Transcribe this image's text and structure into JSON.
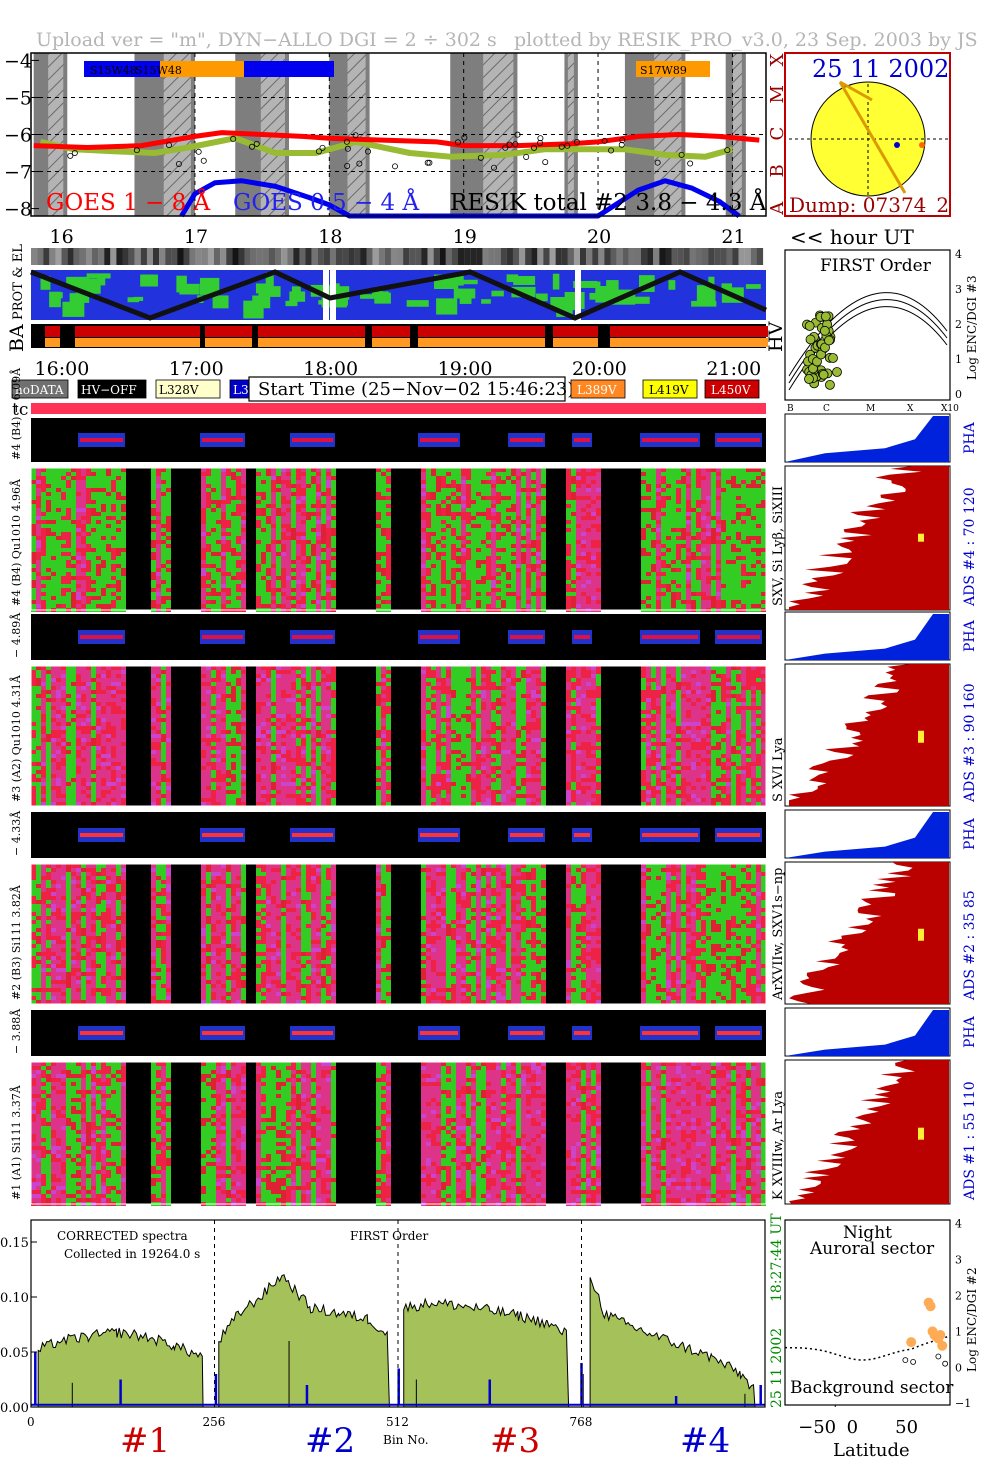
{
  "header": {
    "upload": "Upload ver = \"m\", DYN−ALLO DGI =   2 ÷ 302 s",
    "plotted": "plotted by RESIK_PRO_v3.0, 23 Sep. 2003 by JS"
  },
  "goes_panel": {
    "y_ticks": [
      "−4",
      "−5",
      "−6",
      "−7",
      "−8"
    ],
    "flare_classes": [
      "X",
      "M",
      "C",
      "B",
      "A"
    ],
    "x_ticks": [
      "16",
      "17",
      "18",
      "19",
      "20",
      "21"
    ],
    "labels": {
      "goes18": "GOES 1 − 8 Å",
      "goes054": "GOES 0.5 − 4 Å",
      "resik": "RESIK total #2  3.8 − 4.3 Å"
    },
    "active_regions": [
      "S15W48",
      "S15W48",
      "S17W89"
    ],
    "colors": {
      "goes18": "#ff0000",
      "goes054": "#0000ee",
      "resik": "#99bb33"
    }
  },
  "sun_panel": {
    "date": "25 11 2002",
    "dump": "Dump: 07374_2"
  },
  "hour_label": "<< hour UT",
  "housekeeping": {
    "side_labels": {
      "prot_el": "PROT & EL",
      "ba": "BA",
      "hv": "HV"
    },
    "time_ticks": [
      "16:00",
      "17:00",
      "18:00",
      "19:00",
      "20:00",
      "21:00"
    ]
  },
  "legend": {
    "items": [
      {
        "label": "noDATA",
        "bg": "#707070",
        "fg": "#ffffff"
      },
      {
        "label": "HV−OFF",
        "bg": "#000000",
        "fg": "#ffffff"
      },
      {
        "label": "L328V",
        "bg": "#ffffcc",
        "fg": "#000000"
      },
      {
        "label": "L358V",
        "bg": "#0000cc",
        "fg": "#ffffff"
      }
    ],
    "start_time": "Start Time (25−Nov−02 15:46:23)",
    "items_right": [
      {
        "label": "L389V",
        "bg": "#ff8822",
        "fg": "#ffffff"
      },
      {
        "label": "L419V",
        "bg": "#ffff00",
        "fg": "#000000"
      },
      {
        "label": "L450V",
        "bg": "#cc0000",
        "fg": "#ffffff"
      }
    ]
  },
  "first_order_panel": {
    "title": "FIRST Order",
    "y_label": "Log ENC/DGI #3",
    "y_ticks": [
      "4",
      "3",
      "2",
      "1",
      "0"
    ],
    "x_ticks": [
      "B",
      "C",
      "M",
      "X",
      "X10"
    ]
  },
  "tc_label": "tc",
  "channels": [
    {
      "pha_side": "#4 (B4) − 6.09Å",
      "spec_side": "#4 (B4) Qu1010 4.96Å",
      "right_side": "SXV, Si Lyβ, SiXIII",
      "ads": "ADS #4 :   70 120",
      "pha": "PHA",
      "palette": "green"
    },
    {
      "pha_side": "− 4.89Å",
      "spec_side": "#3 (A2) Qu1010 4.31Å",
      "right_side": "S XVI Lya",
      "ads": "ADS #3 :   90 160",
      "pha": "PHA",
      "palette": "pink"
    },
    {
      "pha_side": "− 4.33Å",
      "spec_side": "#2 (B3) Si111 3.82Å",
      "right_side": "ArXVIIw, SXV1s−np",
      "ads": "ADS #2 :   35  85",
      "pha": "PHA",
      "palette": "pink"
    },
    {
      "pha_side": "− 3.88Å",
      "spec_side": "#1 (A1) Si111 3.37Å",
      "right_side": "K XVIIIw, Ar Lya",
      "ads": "ADS #1 :   55 110",
      "pha": "PHA",
      "palette": "pink"
    }
  ],
  "spectrum_panel": {
    "left_text": "CORRECTED spectra",
    "collected": "Collected in 19264.0 s",
    "first_order": "FIRST Order",
    "y_ticks": [
      "0.15",
      "0.10",
      "0.05",
      "0.00"
    ],
    "x_ticks": [
      "0",
      "256",
      "512",
      "768"
    ],
    "x_label": "Bin No.",
    "right_time": "18:27:44 UT",
    "right_date": "25 11 2002",
    "channel_labels": [
      {
        "text": "#1",
        "color": "#cc0000"
      },
      {
        "text": "#2",
        "color": "#0000cc"
      },
      {
        "text": "#3",
        "color": "#cc0000"
      },
      {
        "text": "#4",
        "color": "#0000cc"
      }
    ]
  },
  "latitude_panel": {
    "night": "Night",
    "auroral": "Auroral sector",
    "background": "Background sector",
    "y_label": "Log ENC/DGI #2",
    "y_ticks": [
      "4",
      "3",
      "2",
      "1",
      "0",
      "−1"
    ],
    "x_ticks": [
      "−50",
      "0",
      "50"
    ],
    "x_label": "Latitude"
  },
  "chart_data": [
    {
      "type": "line",
      "xlabel": "",
      "ylabel": "",
      "x_range": [
        15.78,
        21.25
      ],
      "ylim": [
        -8.2,
        -3.8
      ],
      "series": [
        {
          "name": "GOES 1 − 8 Å",
          "x": [
            15.8,
            16.2,
            16.6,
            17.0,
            17.2,
            17.5,
            17.8,
            18.0,
            18.4,
            18.8,
            19.0,
            19.4,
            19.8,
            20.0,
            20.3,
            20.6,
            20.9,
            21.2
          ],
          "y": [
            -6.3,
            -6.35,
            -6.3,
            -6.05,
            -5.95,
            -6.0,
            -6.05,
            -6.1,
            -6.15,
            -6.2,
            -6.3,
            -6.3,
            -6.25,
            -6.2,
            -6.05,
            -6.0,
            -6.05,
            -6.15
          ]
        },
        {
          "name": "GOES 0.5 − 4 Å",
          "x": [
            16.9,
            17.0,
            17.15,
            17.35,
            17.6,
            17.85,
            18.0,
            18.15,
            19.0,
            19.5,
            20.0,
            20.3,
            20.5,
            20.7,
            20.9,
            21.05
          ],
          "y": [
            -8.2,
            -7.6,
            -7.3,
            -7.25,
            -7.4,
            -7.7,
            -7.9,
            -8.2,
            -8.2,
            -8.2,
            -8.2,
            -7.5,
            -7.25,
            -7.45,
            -7.8,
            -8.2
          ]
        },
        {
          "name": "RESIK total #2  3.8 − 4.3 Å",
          "x": [
            15.85,
            16.1,
            16.4,
            16.7,
            16.95,
            17.3,
            17.6,
            17.9,
            18.2,
            18.6,
            18.9,
            19.3,
            19.6,
            19.9,
            20.2,
            20.5,
            20.8,
            21.0
          ],
          "y": [
            -6.2,
            -6.4,
            -6.45,
            -6.5,
            -6.35,
            -6.1,
            -6.5,
            -6.5,
            -6.2,
            -6.5,
            -6.6,
            -6.55,
            -6.4,
            -6.4,
            -6.4,
            -6.55,
            -6.6,
            -6.4
          ]
        }
      ]
    },
    {
      "type": "area",
      "xlabel": "Bin No.",
      "ylabel": "",
      "x_range": [
        0,
        1024
      ],
      "ylim": [
        0,
        0.17
      ],
      "segments": [
        {
          "name": "#1",
          "x": [
            10,
            40,
            80,
            120,
            160,
            200,
            240
          ],
          "y": [
            0.052,
            0.06,
            0.064,
            0.068,
            0.064,
            0.056,
            0.045
          ]
        },
        {
          "name": "#2",
          "x": [
            262,
            290,
            320,
            350,
            390,
            430,
            470,
            500
          ],
          "y": [
            0.06,
            0.085,
            0.1,
            0.12,
            0.09,
            0.085,
            0.08,
            0.065
          ]
        },
        {
          "name": "#3",
          "x": [
            520,
            560,
            600,
            640,
            680,
            720,
            750
          ],
          "y": [
            0.09,
            0.095,
            0.092,
            0.088,
            0.083,
            0.076,
            0.065
          ]
        },
        {
          "name": "#4",
          "x": [
            780,
            800,
            830,
            870,
            910,
            950,
            990,
            1010
          ],
          "y": [
            0.12,
            0.085,
            0.075,
            0.065,
            0.055,
            0.045,
            0.03,
            0.015
          ]
        }
      ]
    },
    {
      "type": "scatter",
      "xlabel": "Latitude",
      "ylabel": "Log ENC/DGI #2",
      "xlim": [
        -80,
        90
      ],
      "ylim": [
        -1.05,
        4.1
      ],
      "x": [
        50,
        68,
        70,
        72,
        74,
        76,
        78,
        80,
        82
      ],
      "y": [
        0.7,
        1.8,
        1.7,
        1.0,
        0.9,
        0.85,
        0.8,
        0.9,
        0.6
      ]
    },
    {
      "type": "scatter",
      "xlabel": "",
      "ylabel": "Log ENC/DGI #3",
      "x": [
        1.05,
        1.1,
        1.15,
        1.2,
        1.25,
        1.3,
        1.35,
        1.4
      ],
      "y": [
        0.6,
        0.9,
        1.1,
        1.3,
        1.5,
        1.7,
        1.2,
        0.8
      ]
    }
  ]
}
